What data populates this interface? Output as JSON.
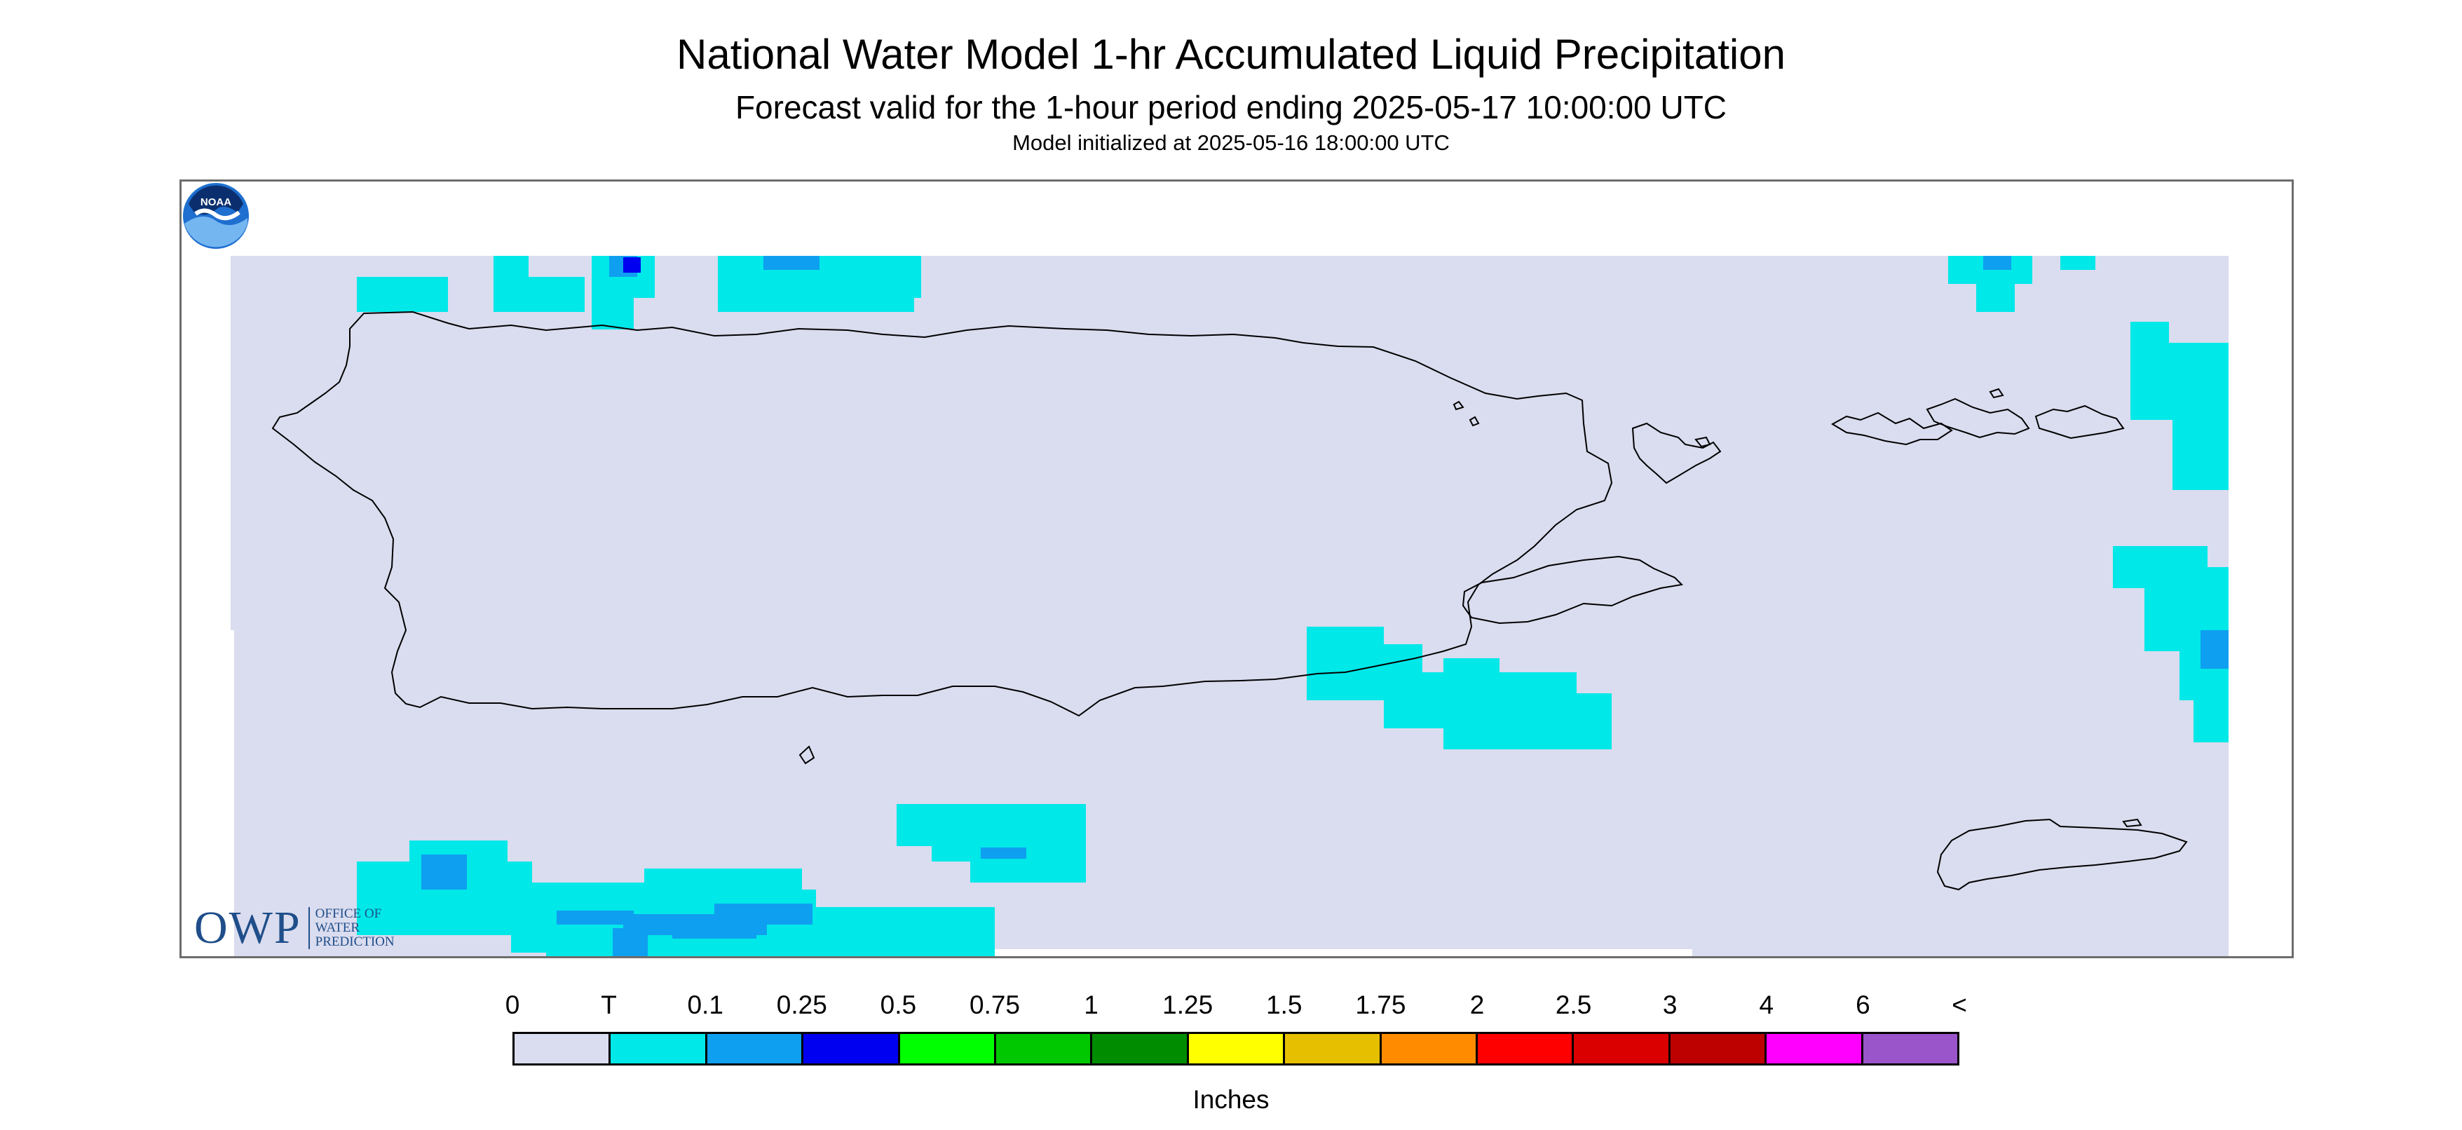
{
  "header": {
    "title": "National Water Model 1-hr Accumulated Liquid Precipitation",
    "subtitle": "Forecast valid for the 1-hour period ending 2025-05-17 10:00:00 UTC",
    "init": "Model initialized at 2025-05-16 18:00:00 UTC"
  },
  "logos": {
    "owp_big": "OWP",
    "owp_line1": "OFFICE OF",
    "owp_line2": "WATER",
    "owp_line3": "PREDICTION",
    "noaa": "NOAA"
  },
  "legend": {
    "labels": [
      "0",
      "T",
      "0.1",
      "0.25",
      "0.5",
      "0.75",
      "1",
      "1.25",
      "1.5",
      "1.75",
      "2",
      "2.5",
      "3",
      "4",
      "6",
      "<"
    ],
    "colors": [
      "#dadcef",
      "#00e8e8",
      "#0f9ff0",
      "#0000f0",
      "#00ff00",
      "#00c800",
      "#008c00",
      "#ffff00",
      "#e6bf00",
      "#ff8c00",
      "#ff0000",
      "#da0000",
      "#bd0000",
      "#ff00ff",
      "#9955c9"
    ],
    "units": "Inches"
  },
  "colors": {
    "no_precip": "#dadcef",
    "trace": "#00e8e8",
    "light": "#0f9ff0",
    "moderate": "#0000f0",
    "frame": "#6d6d6d",
    "coast": "#000000"
  }
}
